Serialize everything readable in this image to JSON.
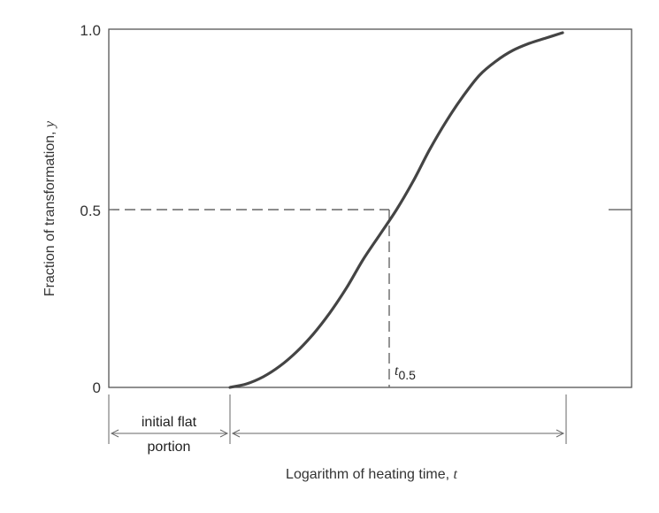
{
  "chart_data": {
    "type": "line",
    "xlabel": "Logarithm of heating time,",
    "xlabel_var": "t",
    "ylabel": "Fraction of transformation,",
    "ylabel_var": "y",
    "yticks": [
      "0",
      "0.5",
      "1.0"
    ],
    "ylim": [
      0,
      1
    ],
    "grid": false,
    "series": [
      {
        "x": [
          0,
          0.05,
          0.1,
          0.15,
          0.2,
          0.25,
          0.3,
          0.35,
          0.4,
          0.45,
          0.5,
          0.55,
          0.6,
          0.65,
          0.7,
          0.75,
          0.8,
          0.85,
          0.9,
          0.95,
          1.0
        ],
        "y": [
          0.0,
          0.01,
          0.03,
          0.06,
          0.1,
          0.15,
          0.21,
          0.28,
          0.36,
          0.43,
          0.5,
          0.58,
          0.67,
          0.75,
          0.82,
          0.88,
          0.92,
          0.95,
          0.97,
          0.985,
          1.0
        ]
      }
    ],
    "annotations": {
      "t_half_label": "t",
      "t_half_sub": "0.5",
      "t_half_y": 0.5,
      "flat_label_line1": "initial flat",
      "flat_label_line2": "portion"
    }
  }
}
